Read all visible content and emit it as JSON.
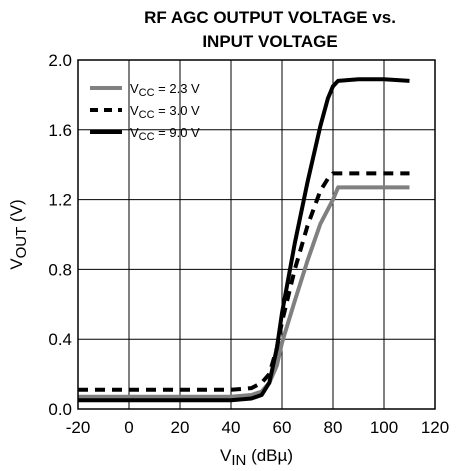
{
  "chart_data": {
    "type": "line",
    "title": [
      "RF AGC OUTPUT VOLTAGE vs.",
      "INPUT VOLTAGE"
    ],
    "xlabel": {
      "main": "V",
      "sub": "IN",
      "rest": " (dBµ)"
    },
    "ylabel": {
      "main": "V",
      "sub": "OUT",
      "rest": " (V)"
    },
    "xlim": [
      -20,
      120
    ],
    "ylim": [
      0,
      2.0
    ],
    "xticks": [
      -20,
      0,
      20,
      40,
      60,
      80,
      100,
      120
    ],
    "yticks": [
      0,
      0.4,
      0.8,
      1.2,
      1.6,
      2.0
    ],
    "xtick_labels": [
      "-20",
      "0",
      "20",
      "40",
      "60",
      "80",
      "100",
      "120"
    ],
    "ytick_labels": [
      "0.0",
      "0.4",
      "0.8",
      "1.2",
      "1.6",
      "2.0"
    ],
    "grid": true,
    "legend": "top-left",
    "series": [
      {
        "name": {
          "main": "V",
          "sub": "CC",
          "rest": " = 2.3 V"
        },
        "color": "#808080",
        "dash": "solid",
        "x": [
          -20,
          0,
          20,
          40,
          48,
          52,
          55,
          58,
          60,
          65,
          70,
          75,
          80,
          82,
          90,
          100,
          110
        ],
        "y": [
          0.07,
          0.07,
          0.07,
          0.07,
          0.08,
          0.1,
          0.15,
          0.25,
          0.38,
          0.62,
          0.85,
          1.06,
          1.2,
          1.27,
          1.27,
          1.27,
          1.27
        ]
      },
      {
        "name": {
          "main": "V",
          "sub": "CC",
          "rest": " = 3.0 V"
        },
        "color": "#000000",
        "dash": "dashed",
        "x": [
          -20,
          0,
          20,
          40,
          48,
          52,
          55,
          58,
          60,
          65,
          70,
          75,
          78,
          80,
          90,
          100,
          110
        ],
        "y": [
          0.11,
          0.11,
          0.11,
          0.11,
          0.12,
          0.15,
          0.2,
          0.35,
          0.5,
          0.8,
          1.05,
          1.25,
          1.32,
          1.35,
          1.35,
          1.35,
          1.35
        ]
      },
      {
        "name": {
          "main": "V",
          "sub": "CC",
          "rest": " = 9.0 V"
        },
        "color": "#000000",
        "dash": "solid",
        "x": [
          -20,
          0,
          20,
          40,
          48,
          52,
          55,
          58,
          60,
          65,
          70,
          75,
          78,
          80,
          82,
          90,
          100,
          110
        ],
        "y": [
          0.05,
          0.05,
          0.05,
          0.05,
          0.06,
          0.08,
          0.15,
          0.35,
          0.55,
          0.95,
          1.3,
          1.62,
          1.78,
          1.85,
          1.88,
          1.89,
          1.89,
          1.88
        ]
      }
    ]
  }
}
